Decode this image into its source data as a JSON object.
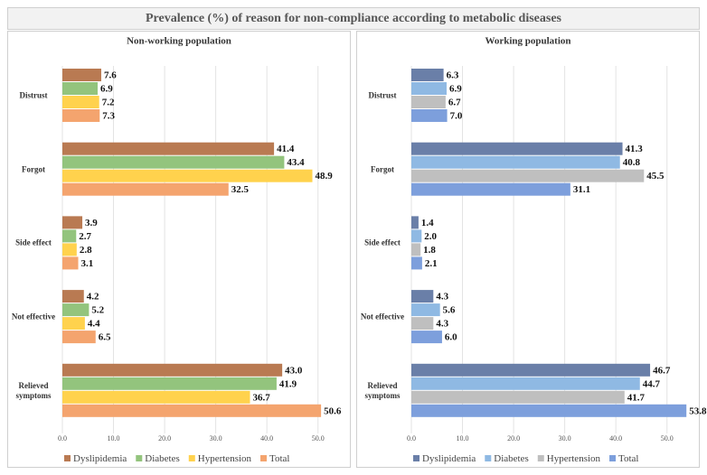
{
  "title": "Prevalence (%) of reason for non-compliance according to metabolic diseases",
  "chart_data": [
    {
      "type": "bar",
      "orientation": "horizontal",
      "title": "Non-working population",
      "categories": [
        "Distrust",
        "Forgot",
        "Side effect",
        "Not effective",
        "Relieved symptoms"
      ],
      "series": [
        {
          "name": "Dyslipidemia",
          "color": "#b97a52",
          "values": [
            7.6,
            41.4,
            3.9,
            4.2,
            43.0
          ],
          "value_labels": [
            "7.6",
            "41.4",
            "3.9",
            "4.2",
            "43.0"
          ]
        },
        {
          "name": "Diabetes",
          "color": "#93c47d",
          "values": [
            6.9,
            43.4,
            2.7,
            5.2,
            41.9
          ],
          "value_labels": [
            "6.9",
            "43.4",
            "2.7",
            "5.2",
            "41.9"
          ]
        },
        {
          "name": "Hypertension",
          "color": "#ffd24d",
          "values": [
            7.2,
            48.9,
            2.8,
            4.4,
            36.7
          ],
          "value_labels": [
            "7.2",
            "48.9",
            "2.8",
            "4.4",
            "36.7"
          ]
        },
        {
          "name": "Total",
          "color": "#f4a46e",
          "values": [
            7.3,
            32.5,
            3.1,
            6.5,
            50.6
          ],
          "value_labels": [
            "7.3",
            "32.5",
            "3.1",
            "6.5",
            "50.6"
          ]
        }
      ],
      "xlim": [
        0,
        55
      ],
      "xticks": [
        {
          "value": 0,
          "label": "0.0"
        },
        {
          "value": 10,
          "label": "10.0"
        },
        {
          "value": 20,
          "label": "20.0"
        },
        {
          "value": 30,
          "label": "30.0"
        },
        {
          "value": 40,
          "label": "40.0"
        },
        {
          "value": 50,
          "label": "50.0"
        }
      ],
      "grid": true,
      "legend": "bottom"
    },
    {
      "type": "bar",
      "orientation": "horizontal",
      "title": "Working population",
      "categories": [
        "Distrust",
        "Forgot",
        "Side effect",
        "Not effective",
        "Relieved symptoms"
      ],
      "series": [
        {
          "name": "Dyslipidemia",
          "color": "#6a7fa8",
          "values": [
            6.3,
            41.3,
            1.4,
            4.3,
            46.7
          ],
          "value_labels": [
            "6.3",
            "41.3",
            "1.4",
            "4.3",
            "46.7"
          ]
        },
        {
          "name": "Diabetes",
          "color": "#8fb9e3",
          "values": [
            6.9,
            40.8,
            2.0,
            5.6,
            44.7
          ],
          "value_labels": [
            "6.9",
            "40.8",
            "2.0",
            "5.6",
            "44.7"
          ]
        },
        {
          "name": "Hypertension",
          "color": "#bfbfbf",
          "values": [
            6.7,
            45.5,
            1.8,
            4.3,
            41.7
          ],
          "value_labels": [
            "6.7",
            "45.5",
            "1.8",
            "4.3",
            "41.7"
          ]
        },
        {
          "name": "Total",
          "color": "#7d9fdc",
          "values": [
            7.0,
            31.1,
            2.1,
            6.0,
            53.8
          ],
          "value_labels": [
            "7.0",
            "31.1",
            "2.1",
            "6.0",
            "53.8"
          ]
        }
      ],
      "xlim": [
        0,
        55
      ],
      "xticks": [
        {
          "value": 0,
          "label": "0.0"
        },
        {
          "value": 10,
          "label": "10.0"
        },
        {
          "value": 20,
          "label": "20.0"
        },
        {
          "value": 30,
          "label": "30.0"
        },
        {
          "value": 40,
          "label": "40.0"
        },
        {
          "value": 50,
          "label": "50.0"
        }
      ],
      "grid": true,
      "legend": "bottom"
    }
  ]
}
